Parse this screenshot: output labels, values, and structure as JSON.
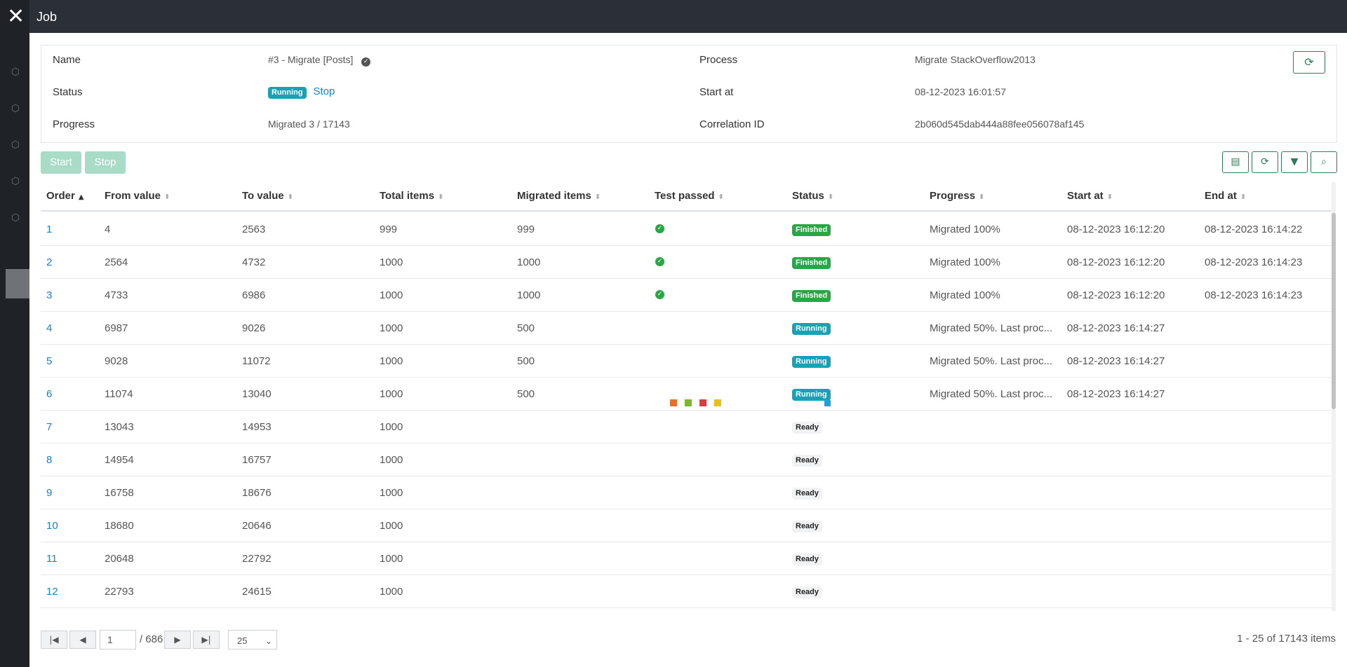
{
  "window": {
    "title": "Job"
  },
  "job": {
    "name_label": "Name",
    "name_value": "#3 - Migrate [Posts]",
    "status_label": "Status",
    "status_badge": "Running",
    "stop_link": "Stop",
    "progress_label": "Progress",
    "progress_value": "Migrated 3 / 17143",
    "process_label": "Process",
    "process_value": "Migrate StackOverflow2013",
    "start_label": "Start at",
    "start_value": "08-12-2023 16:01:57",
    "correlation_label": "Correlation ID",
    "correlation_value": "2b060d545dab444a88fee056078af145"
  },
  "toolbar": {
    "start_label": "Start",
    "stop_label": "Stop"
  },
  "grid": {
    "columns": [
      "Order",
      "From value",
      "To value",
      "Total items",
      "Migrated items",
      "Test passed",
      "Status",
      "Progress",
      "Start at",
      "End at"
    ],
    "rows": [
      {
        "order": "1",
        "from": "4",
        "to": "2563",
        "total": "999",
        "migrated": "999",
        "passed": true,
        "status": "Finished",
        "progress": "Migrated 100%",
        "start": "08-12-2023 16:12:20",
        "end": "08-12-2023 16:14:22"
      },
      {
        "order": "2",
        "from": "2564",
        "to": "4732",
        "total": "1000",
        "migrated": "1000",
        "passed": true,
        "status": "Finished",
        "progress": "Migrated 100%",
        "start": "08-12-2023 16:12:20",
        "end": "08-12-2023 16:14:23"
      },
      {
        "order": "3",
        "from": "4733",
        "to": "6986",
        "total": "1000",
        "migrated": "1000",
        "passed": true,
        "status": "Finished",
        "progress": "Migrated 100%",
        "start": "08-12-2023 16:12:20",
        "end": "08-12-2023 16:14:23"
      },
      {
        "order": "4",
        "from": "6987",
        "to": "9026",
        "total": "1000",
        "migrated": "500",
        "passed": false,
        "status": "Running",
        "progress": "Migrated 50%. Last proc...",
        "start": "08-12-2023 16:14:27",
        "end": ""
      },
      {
        "order": "5",
        "from": "9028",
        "to": "11072",
        "total": "1000",
        "migrated": "500",
        "passed": false,
        "status": "Running",
        "progress": "Migrated 50%. Last proc...",
        "start": "08-12-2023 16:14:27",
        "end": ""
      },
      {
        "order": "6",
        "from": "11074",
        "to": "13040",
        "total": "1000",
        "migrated": "500",
        "passed": false,
        "status": "Running",
        "progress": "Migrated 50%. Last proc...",
        "start": "08-12-2023 16:14:27",
        "end": ""
      },
      {
        "order": "7",
        "from": "13043",
        "to": "14953",
        "total": "1000",
        "migrated": "",
        "passed": false,
        "status": "Ready",
        "progress": "",
        "start": "",
        "end": ""
      },
      {
        "order": "8",
        "from": "14954",
        "to": "16757",
        "total": "1000",
        "migrated": "",
        "passed": false,
        "status": "Ready",
        "progress": "",
        "start": "",
        "end": ""
      },
      {
        "order": "9",
        "from": "16758",
        "to": "18676",
        "total": "1000",
        "migrated": "",
        "passed": false,
        "status": "Ready",
        "progress": "",
        "start": "",
        "end": ""
      },
      {
        "order": "10",
        "from": "18680",
        "to": "20646",
        "total": "1000",
        "migrated": "",
        "passed": false,
        "status": "Ready",
        "progress": "",
        "start": "",
        "end": ""
      },
      {
        "order": "11",
        "from": "20648",
        "to": "22792",
        "total": "1000",
        "migrated": "",
        "passed": false,
        "status": "Ready",
        "progress": "",
        "start": "",
        "end": ""
      },
      {
        "order": "12",
        "from": "22793",
        "to": "24615",
        "total": "1000",
        "migrated": "",
        "passed": false,
        "status": "Ready",
        "progress": "",
        "start": "",
        "end": ""
      }
    ]
  },
  "pager": {
    "page": "1",
    "total_pages": "/ 686",
    "page_size": "25",
    "info": "1 - 25 of 17143 items"
  },
  "colors": {
    "running": "#17a2b8",
    "finished": "#28a745",
    "link": "#1a7fd4",
    "accent": "#2e7d5a",
    "loader": [
      "#f26b21",
      "#7cb82f",
      "#e03a3e",
      "#e9c017",
      "#1aa1e1"
    ]
  },
  "icons": [
    "close-icon",
    "verified-icon",
    "refresh-icon",
    "excel-icon",
    "filter-icon",
    "search-icon",
    "sort-icon",
    "check-circle-icon",
    "first-page-icon",
    "prev-page-icon",
    "next-page-icon",
    "last-page-icon",
    "chevron-down-icon"
  ]
}
